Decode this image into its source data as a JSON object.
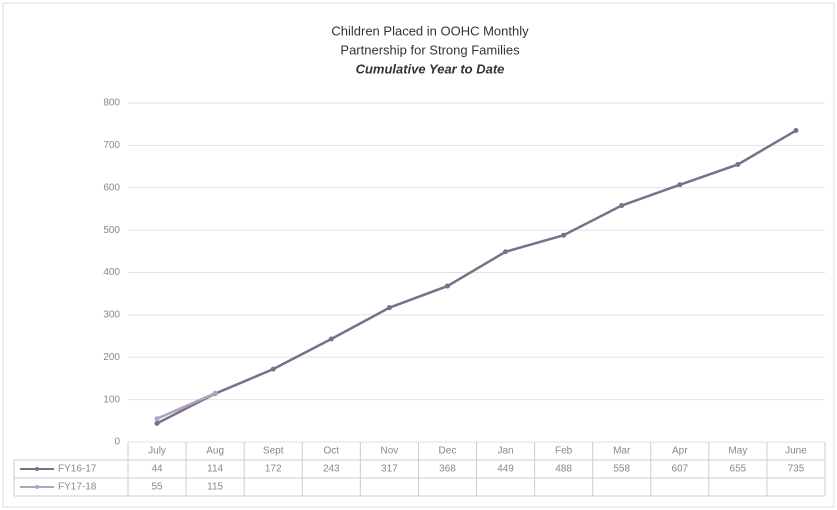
{
  "chart_data": {
    "type": "line",
    "title": "Children Placed in OOHC Monthly",
    "subtitle": "Partnership for Strong Families",
    "subtitle2": "Cumulative Year to Date",
    "categories": [
      "July",
      "Aug",
      "Sept",
      "Oct",
      "Nov",
      "Dec",
      "Jan",
      "Feb",
      "Mar",
      "Apr",
      "May",
      "June"
    ],
    "series": [
      {
        "name": "FY16-17",
        "color": "#7d6f8a",
        "values": [
          44,
          114,
          172,
          243,
          317,
          368,
          449,
          488,
          558,
          607,
          655,
          735
        ]
      },
      {
        "name": "FY17-18",
        "color": "#b3a3bf",
        "values": [
          55,
          115,
          null,
          null,
          null,
          null,
          null,
          null,
          null,
          null,
          null,
          null
        ]
      }
    ],
    "ylim": [
      0,
      800
    ],
    "yticks": [
      0,
      100,
      200,
      300,
      400,
      500,
      600,
      700,
      800
    ],
    "grid": true
  }
}
